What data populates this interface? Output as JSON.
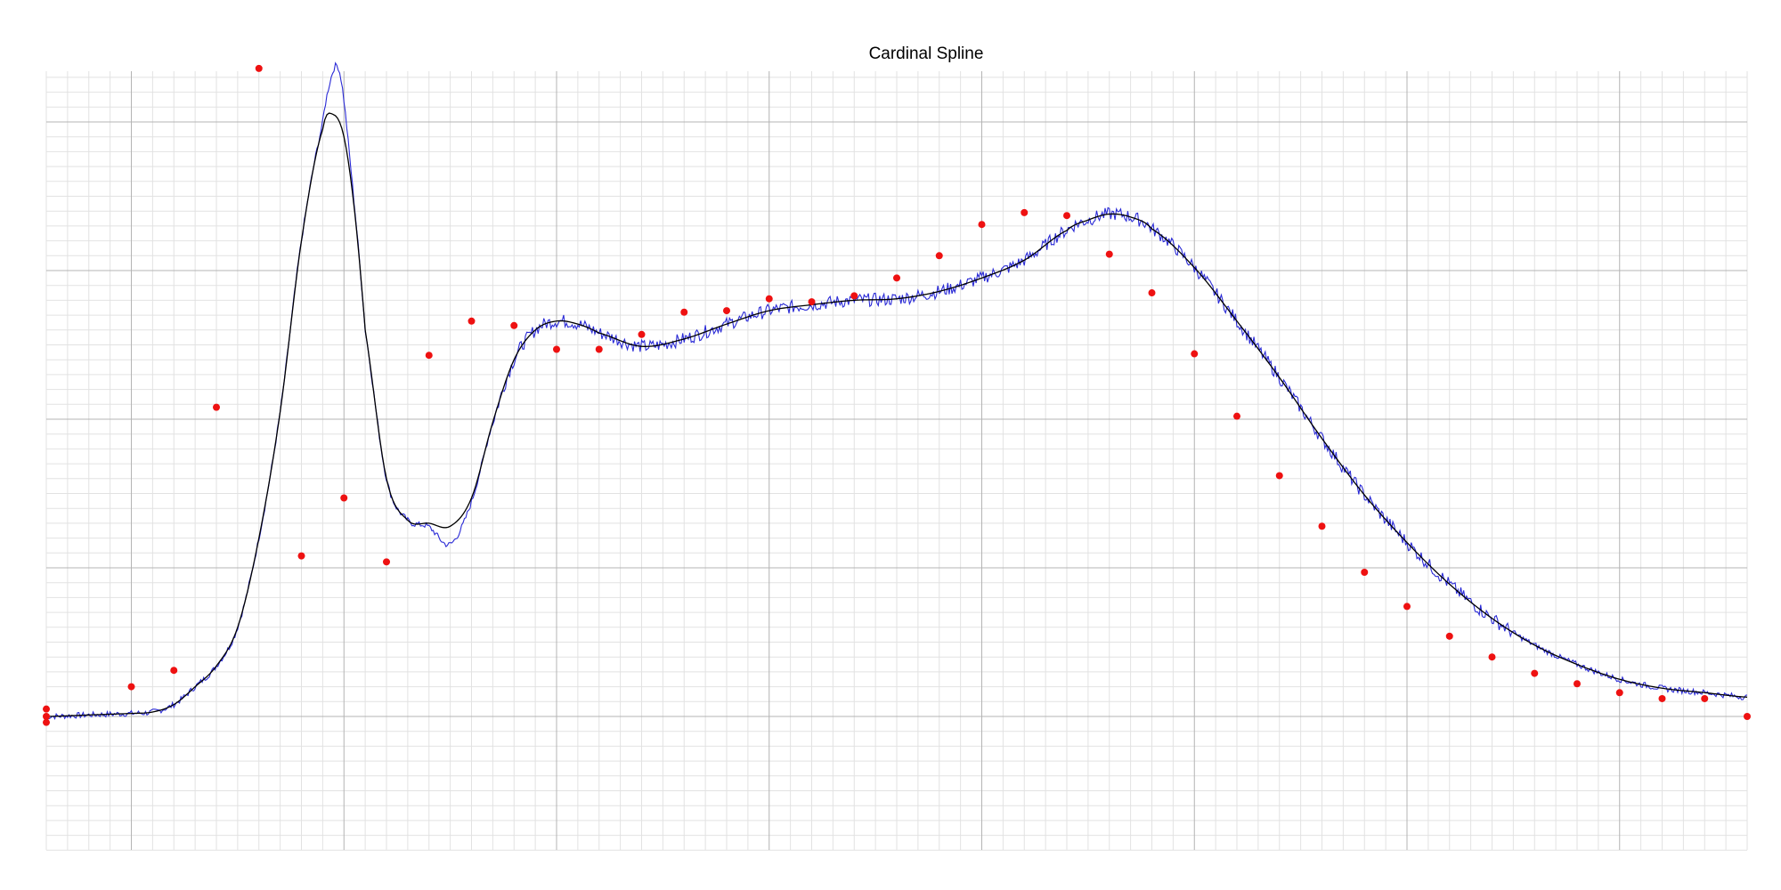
{
  "chart_data": {
    "type": "line",
    "title": "Cardinal Spline",
    "xlabel": "",
    "ylabel": "",
    "x_range": [
      -0.4,
      7.6
    ],
    "y_range": [
      -0.9,
      4.35
    ],
    "grid": true,
    "legend": "none",
    "colors": {
      "control_points": "#ee1111",
      "spline": "#000000",
      "noisy_signal": "#2a2ad6",
      "grid_major": "#b4b4b4",
      "grid_minor": "#e2e2e2"
    },
    "series": [
      {
        "kind": "scatter",
        "x": [
          -0.4,
          -0.4,
          -0.4,
          0,
          0.2,
          0.4,
          0.6,
          0.8,
          1.0,
          1.2,
          1.4,
          1.6,
          1.8,
          2.0,
          2.2,
          2.4,
          2.6,
          2.8,
          3.0,
          3.2,
          3.4,
          3.6,
          3.8,
          4.0,
          4.2,
          4.4,
          4.6,
          4.8,
          5.0,
          5.2,
          5.4,
          5.6,
          5.8,
          6.0,
          6.2,
          6.4,
          6.6,
          6.8,
          7.0,
          7.2,
          7.4,
          7.6
        ],
        "y": [
          0.05,
          0.0,
          -0.04,
          0.2,
          0.31,
          2.08,
          4.36,
          1.08,
          1.47,
          1.04,
          2.43,
          2.66,
          2.63,
          2.47,
          2.47,
          2.57,
          2.72,
          2.73,
          2.81,
          2.79,
          2.83,
          2.95,
          3.1,
          3.31,
          3.39,
          3.37,
          3.11,
          2.85,
          2.44,
          2.02,
          1.62,
          1.28,
          0.97,
          0.74,
          0.54,
          0.4,
          0.29,
          0.22,
          0.16,
          0.12,
          0.12,
          0.0
        ]
      },
      {
        "kind": "spline",
        "x": [
          -0.4,
          -0.2,
          0.0,
          0.1,
          0.2,
          0.3,
          0.4,
          0.5,
          0.6,
          0.7,
          0.8,
          0.9,
          0.95,
          1.0,
          1.05,
          1.1,
          1.2,
          1.3,
          1.4,
          1.5,
          1.6,
          1.7,
          1.8,
          1.9,
          2.0,
          2.1,
          2.2,
          2.4,
          2.6,
          2.8,
          3.0,
          3.2,
          3.4,
          3.6,
          3.8,
          4.0,
          4.2,
          4.4,
          4.5,
          4.6,
          4.7,
          4.8,
          5.0,
          5.2,
          5.4,
          5.6,
          5.8,
          6.0,
          6.2,
          6.4,
          6.6,
          6.8,
          7.0,
          7.2,
          7.4,
          7.6
        ],
        "y": [
          0.0,
          0.01,
          0.02,
          0.03,
          0.08,
          0.2,
          0.34,
          0.6,
          1.2,
          2.05,
          3.2,
          3.95,
          4.05,
          3.9,
          3.4,
          2.6,
          1.6,
          1.32,
          1.3,
          1.28,
          1.47,
          1.98,
          2.4,
          2.6,
          2.66,
          2.64,
          2.58,
          2.49,
          2.54,
          2.64,
          2.73,
          2.77,
          2.8,
          2.81,
          2.86,
          2.95,
          3.07,
          3.27,
          3.34,
          3.38,
          3.36,
          3.28,
          3.02,
          2.66,
          2.28,
          1.87,
          1.49,
          1.17,
          0.89,
          0.66,
          0.48,
          0.35,
          0.25,
          0.19,
          0.16,
          0.13
        ]
      }
    ]
  }
}
